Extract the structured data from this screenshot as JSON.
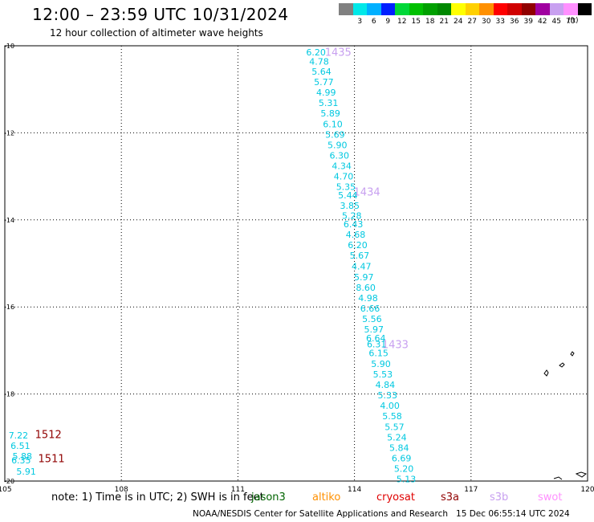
{
  "header": {
    "title": "12:00 – 23:59 UTC 10/31/2024",
    "subtitle": "12 hour collection of altimeter wave heights"
  },
  "color_scale": {
    "unit": "(ft)",
    "items": [
      {
        "label": "",
        "color": "#808080"
      },
      {
        "label": "3",
        "color": "#00e8e8"
      },
      {
        "label": "6",
        "color": "#00b0ff"
      },
      {
        "label": "9",
        "color": "#0020ff"
      },
      {
        "label": "12",
        "color": "#00d838"
      },
      {
        "label": "15",
        "color": "#00c000"
      },
      {
        "label": "18",
        "color": "#00a000"
      },
      {
        "label": "21",
        "color": "#008800"
      },
      {
        "label": "24",
        "color": "#ffff00"
      },
      {
        "label": "27",
        "color": "#ffd000"
      },
      {
        "label": "30",
        "color": "#ff9000"
      },
      {
        "label": "33",
        "color": "#ff0000"
      },
      {
        "label": "36",
        "color": "#d00000"
      },
      {
        "label": "39",
        "color": "#900000"
      },
      {
        "label": "42",
        "color": "#a000a0"
      },
      {
        "label": "45",
        "color": "#c8a0f0"
      },
      {
        "label": "70",
        "color": "#ff90ff"
      },
      {
        "label": "",
        "color": "#000000"
      }
    ]
  },
  "note": {
    "text": "note: 1) Time is in UTC; 2) SWH is in feet",
    "missions": [
      {
        "label": "jason3",
        "color": "#006400"
      },
      {
        "label": "altiko",
        "color": "#ff9000"
      },
      {
        "label": "cryosat",
        "color": "#e00000"
      },
      {
        "label": "s3a",
        "color": "#900000"
      },
      {
        "label": "s3b",
        "color": "#c8a0f0"
      },
      {
        "label": "swot",
        "color": "#ff90ff"
      }
    ]
  },
  "footer": {
    "credit": "NOAA/NESDIS Center for Satellite Applications and Research",
    "timestamp": "15 Dec 06:55:14 UTC 2024"
  },
  "chart_data": {
    "type": "scatter",
    "xlim": [
      105,
      120
    ],
    "ylim": [
      -20,
      -10
    ],
    "x_ticks": [
      {
        "value": 105,
        "label": "105"
      },
      {
        "value": 108,
        "label": "108"
      },
      {
        "value": 111,
        "label": "111"
      },
      {
        "value": 114,
        "label": "114"
      },
      {
        "value": 117,
        "label": "117"
      },
      {
        "value": 120,
        "label": "120"
      }
    ],
    "y_ticks": [
      {
        "value": -10,
        "label": "-10"
      },
      {
        "value": -12,
        "label": "-12"
      },
      {
        "value": -14,
        "label": "-14"
      },
      {
        "value": -16,
        "label": "-16"
      },
      {
        "value": -18,
        "label": "-18"
      },
      {
        "value": -20,
        "label": "-20"
      }
    ],
    "grid": true,
    "value_color": "#00c8e0",
    "series": [
      {
        "color": "#00c8e0",
        "points": [
          {
            "lon": 113.01,
            "lat": -10.15,
            "swh": "6.20"
          },
          {
            "lon": 113.09,
            "lat": -10.36,
            "swh": "4.78"
          },
          {
            "lon": 113.15,
            "lat": -10.59,
            "swh": "5.64"
          },
          {
            "lon": 113.21,
            "lat": -10.83,
            "swh": "5.77"
          },
          {
            "lon": 113.27,
            "lat": -11.07,
            "swh": "4.99"
          },
          {
            "lon": 113.33,
            "lat": -11.31,
            "swh": "5.31"
          },
          {
            "lon": 113.38,
            "lat": -11.55,
            "swh": "5.89"
          },
          {
            "lon": 113.44,
            "lat": -11.8,
            "swh": "6.10"
          },
          {
            "lon": 113.5,
            "lat": -12.04,
            "swh": "5.69"
          },
          {
            "lon": 113.56,
            "lat": -12.28,
            "swh": "5.90"
          },
          {
            "lon": 113.61,
            "lat": -12.52,
            "swh": "6.30"
          },
          {
            "lon": 113.67,
            "lat": -12.76,
            "swh": "4.34"
          },
          {
            "lon": 113.72,
            "lat": -13.0,
            "swh": "4.70"
          },
          {
            "lon": 113.78,
            "lat": -13.24,
            "swh": "5.35"
          },
          {
            "lon": 113.83,
            "lat": -13.43,
            "swh": "5.44"
          },
          {
            "lon": 113.88,
            "lat": -13.67,
            "swh": "3.85"
          },
          {
            "lon": 113.93,
            "lat": -13.9,
            "swh": "5.28"
          },
          {
            "lon": 113.97,
            "lat": -14.1,
            "swh": "6.43"
          },
          {
            "lon": 114.03,
            "lat": -14.34,
            "swh": "4.68"
          },
          {
            "lon": 114.08,
            "lat": -14.58,
            "swh": "6.20"
          },
          {
            "lon": 114.13,
            "lat": -14.82,
            "swh": "5.67"
          },
          {
            "lon": 114.18,
            "lat": -15.06,
            "swh": "4.47"
          },
          {
            "lon": 114.24,
            "lat": -15.31,
            "swh": "5.97"
          },
          {
            "lon": 114.29,
            "lat": -15.55,
            "swh": "8.60"
          },
          {
            "lon": 114.35,
            "lat": -15.79,
            "swh": "4.98"
          },
          {
            "lon": 114.4,
            "lat": -16.03,
            "swh": "6.66"
          },
          {
            "lon": 114.45,
            "lat": -16.27,
            "swh": "5.56"
          },
          {
            "lon": 114.5,
            "lat": -16.51,
            "swh": "5.97"
          },
          {
            "lon": 114.55,
            "lat": -16.72,
            "swh": "6.64"
          },
          {
            "lon": 114.57,
            "lat": -16.85,
            "swh": "6.31"
          },
          {
            "lon": 114.62,
            "lat": -17.06,
            "swh": "6.15"
          },
          {
            "lon": 114.68,
            "lat": -17.31,
            "swh": "5.90"
          },
          {
            "lon": 114.73,
            "lat": -17.55,
            "swh": "5.53"
          },
          {
            "lon": 114.79,
            "lat": -17.79,
            "swh": "4.84"
          },
          {
            "lon": 114.85,
            "lat": -18.03,
            "swh": "5.33"
          },
          {
            "lon": 114.91,
            "lat": -18.27,
            "swh": "4.00"
          },
          {
            "lon": 114.97,
            "lat": -18.51,
            "swh": "5.58"
          },
          {
            "lon": 115.03,
            "lat": -18.75,
            "swh": "5.57"
          },
          {
            "lon": 115.09,
            "lat": -18.99,
            "swh": "5.24"
          },
          {
            "lon": 115.15,
            "lat": -19.23,
            "swh": "5.84"
          },
          {
            "lon": 115.21,
            "lat": -19.47,
            "swh": "6.69"
          },
          {
            "lon": 115.27,
            "lat": -19.71,
            "swh": "5.20"
          },
          {
            "lon": 115.33,
            "lat": -19.95,
            "swh": "5.13"
          }
        ]
      },
      {
        "color": "#00c8e0",
        "points": [
          {
            "lon": 105.35,
            "lat": -18.95,
            "swh": "7.22"
          },
          {
            "lon": 105.4,
            "lat": -19.19,
            "swh": "6.51"
          },
          {
            "lon": 105.45,
            "lat": -19.43,
            "swh": "5.88"
          },
          {
            "lon": 105.42,
            "lat": -19.52,
            "swh": "6.35"
          },
          {
            "lon": 105.55,
            "lat": -19.78,
            "swh": "5.91"
          }
        ]
      }
    ],
    "pass_labels": [
      {
        "text": "1435",
        "lon": 113.58,
        "lat": -10.14,
        "color": "#c8a0f0"
      },
      {
        "text": "1434",
        "lon": 114.32,
        "lat": -13.35,
        "color": "#c8a0f0"
      },
      {
        "text": "1433",
        "lon": 115.05,
        "lat": -16.85,
        "color": "#c8a0f0"
      },
      {
        "text": "1512",
        "lon": 106.12,
        "lat": -18.92,
        "color": "#900000"
      },
      {
        "text": "1511",
        "lon": 106.2,
        "lat": -19.47,
        "color": "#900000"
      }
    ]
  }
}
